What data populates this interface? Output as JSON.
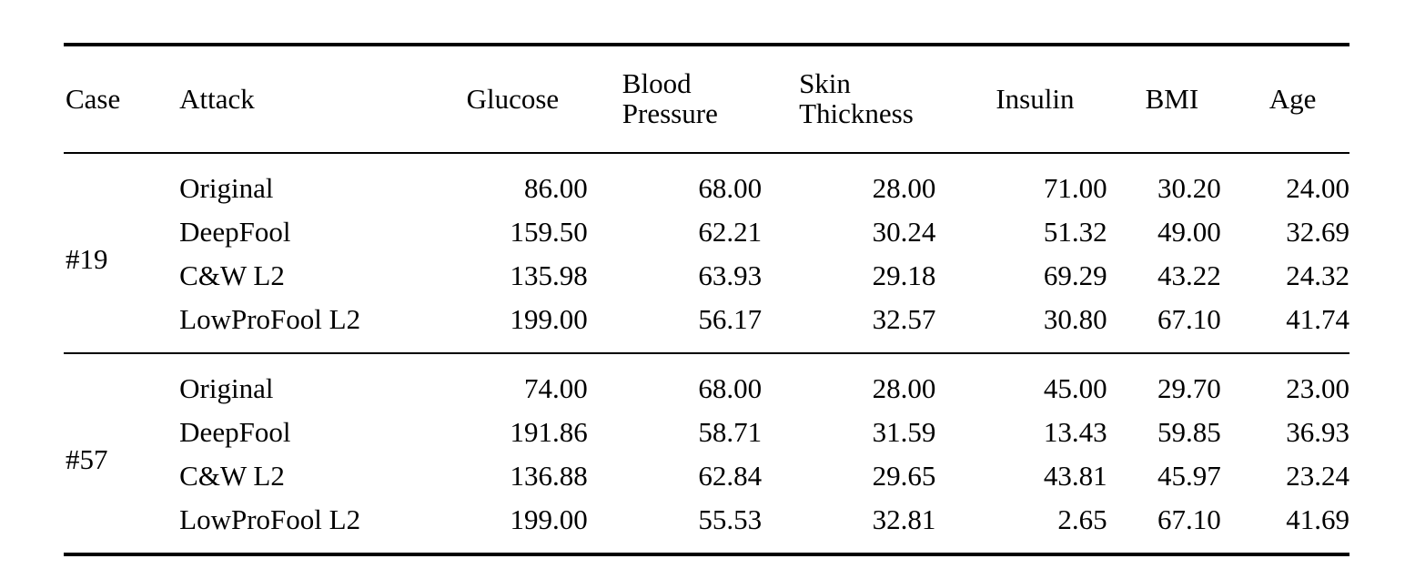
{
  "table": {
    "columns": [
      {
        "label": "Case"
      },
      {
        "label": "Attack"
      },
      {
        "label": "Glucose"
      },
      {
        "label": "Blood\nPressure"
      },
      {
        "label": "Skin\nThickness"
      },
      {
        "label": "Insulin"
      },
      {
        "label": "BMI"
      },
      {
        "label": "Age"
      }
    ],
    "groups": [
      {
        "case": "#19",
        "rows": [
          {
            "attack": "Original",
            "values": [
              "86.00",
              "68.00",
              "28.00",
              "71.00",
              "30.20",
              "24.00"
            ]
          },
          {
            "attack": "DeepFool",
            "values": [
              "159.50",
              "62.21",
              "30.24",
              "51.32",
              "49.00",
              "32.69"
            ]
          },
          {
            "attack": "C&W L2",
            "values": [
              "135.98",
              "63.93",
              "29.18",
              "69.29",
              "43.22",
              "24.32"
            ]
          },
          {
            "attack": "LowProFool L2",
            "values": [
              "199.00",
              "56.17",
              "32.57",
              "30.80",
              "67.10",
              "41.74"
            ]
          }
        ]
      },
      {
        "case": "#57",
        "rows": [
          {
            "attack": "Original",
            "values": [
              "74.00",
              "68.00",
              "28.00",
              "45.00",
              "29.70",
              "23.00"
            ]
          },
          {
            "attack": "DeepFool",
            "values": [
              "191.86",
              "58.71",
              "31.59",
              "13.43",
              "59.85",
              "36.93"
            ]
          },
          {
            "attack": "C&W L2",
            "values": [
              "136.88",
              "62.84",
              "29.65",
              "43.81",
              "45.97",
              "23.24"
            ]
          },
          {
            "attack": "LowProFool L2",
            "values": [
              "199.00",
              "55.53",
              "32.81",
              "2.65",
              "67.10",
              "41.69"
            ]
          }
        ]
      }
    ]
  },
  "colors": {
    "text": "#000000",
    "background": "#ffffff",
    "rule": "#000000"
  },
  "chart_data": {
    "type": "table",
    "title": "",
    "columns": [
      "Case",
      "Attack",
      "Glucose",
      "Blood Pressure",
      "Skin Thickness",
      "Insulin",
      "BMI",
      "Age"
    ],
    "rows": [
      [
        "#19",
        "Original",
        86.0,
        68.0,
        28.0,
        71.0,
        30.2,
        24.0
      ],
      [
        "#19",
        "DeepFool",
        159.5,
        62.21,
        30.24,
        51.32,
        49.0,
        32.69
      ],
      [
        "#19",
        "C&W L2",
        135.98,
        63.93,
        29.18,
        69.29,
        43.22,
        24.32
      ],
      [
        "#19",
        "LowProFool L2",
        199.0,
        56.17,
        32.57,
        30.8,
        67.1,
        41.74
      ],
      [
        "#57",
        "Original",
        74.0,
        68.0,
        28.0,
        45.0,
        29.7,
        23.0
      ],
      [
        "#57",
        "DeepFool",
        191.86,
        58.71,
        31.59,
        13.43,
        59.85,
        36.93
      ],
      [
        "#57",
        "C&W L2",
        136.88,
        62.84,
        29.65,
        43.81,
        45.97,
        23.24
      ],
      [
        "#57",
        "LowProFool L2",
        199.0,
        55.53,
        32.81,
        2.65,
        67.1,
        41.69
      ]
    ]
  }
}
